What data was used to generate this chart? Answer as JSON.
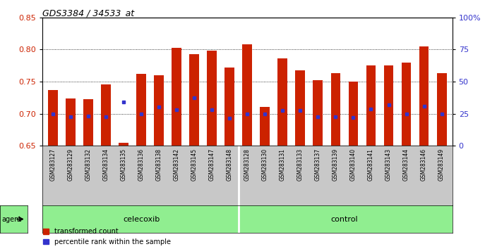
{
  "title": "GDS3384 / 34533_at",
  "samples": [
    "GSM283127",
    "GSM283129",
    "GSM283132",
    "GSM283134",
    "GSM283135",
    "GSM283136",
    "GSM283138",
    "GSM283142",
    "GSM283145",
    "GSM283147",
    "GSM283148",
    "GSM283128",
    "GSM283130",
    "GSM283131",
    "GSM283133",
    "GSM283137",
    "GSM283139",
    "GSM283140",
    "GSM283141",
    "GSM283143",
    "GSM283144",
    "GSM283146",
    "GSM283149"
  ],
  "bar_values": [
    0.737,
    0.724,
    0.722,
    0.745,
    0.655,
    0.762,
    0.76,
    0.803,
    0.793,
    0.798,
    0.772,
    0.808,
    0.71,
    0.786,
    0.768,
    0.752,
    0.763,
    0.75,
    0.775,
    0.775,
    0.78,
    0.805,
    0.763
  ],
  "percentile_values": [
    0.7,
    0.695,
    0.696,
    0.695,
    0.718,
    0.7,
    0.71,
    0.706,
    0.725,
    0.706,
    0.693,
    0.7,
    0.7,
    0.705,
    0.705,
    0.695,
    0.695,
    0.694,
    0.707,
    0.714,
    0.7,
    0.712,
    0.7
  ],
  "ylim": [
    0.65,
    0.85
  ],
  "y2lim": [
    0,
    100
  ],
  "yticks": [
    0.65,
    0.7,
    0.75,
    0.8,
    0.85
  ],
  "y2ticks": [
    0,
    25,
    50,
    75,
    100
  ],
  "y2tick_labels": [
    "0",
    "25",
    "50",
    "75",
    "100%"
  ],
  "bar_color": "#CC2200",
  "dot_color": "#3333CC",
  "baseline": 0.65,
  "bar_width": 0.55,
  "bg_color": "#FFFFFF",
  "tick_area_color": "#C8C8C8",
  "celecoxib_color": "#90EE90",
  "celecoxib_n": 11,
  "control_n": 12,
  "grid_yticks": [
    0.7,
    0.75,
    0.8
  ]
}
